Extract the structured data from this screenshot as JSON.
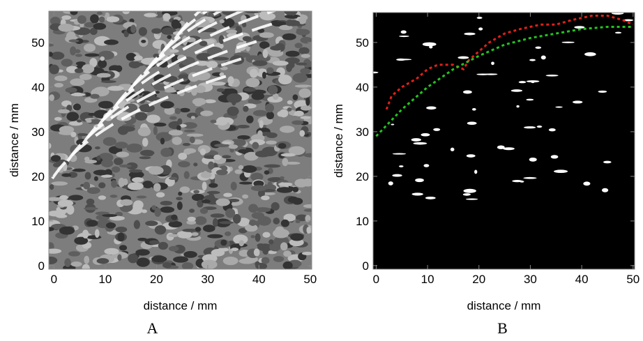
{
  "chart_data": [
    {
      "type": "contour",
      "panel_label": "A",
      "xlabel": "distance / mm",
      "ylabel": "distance / mm",
      "xlim": [
        -1,
        50.3
      ],
      "ylim": [
        -0.8,
        57
      ],
      "xticks": [
        0,
        10,
        20,
        30,
        40,
        50
      ],
      "yticks": [
        0,
        10,
        20,
        30,
        40,
        50
      ]
    },
    {
      "type": "line",
      "panel_label": "B",
      "xlabel": "distance / mm",
      "ylabel": "distance / mm",
      "xlim": [
        -0.6,
        50.3
      ],
      "ylim": [
        -0.8,
        56.7
      ],
      "xticks": [
        0,
        10,
        20,
        30,
        40,
        50
      ],
      "yticks": [
        0,
        10,
        20,
        30,
        40,
        50
      ],
      "series": [
        {
          "color": "#e0201a",
          "x": [
            2,
            3,
            5,
            8,
            10,
            12,
            15,
            17,
            18,
            20,
            22,
            25,
            28,
            32,
            35,
            38,
            42,
            45,
            48,
            50
          ],
          "values": [
            35,
            38,
            40,
            42,
            44,
            45,
            45,
            44,
            46,
            48,
            50,
            52,
            53,
            54,
            54,
            55,
            56,
            56,
            55,
            54
          ]
        },
        {
          "color": "#22c41e",
          "x": [
            0,
            5,
            10,
            15,
            20,
            25,
            30,
            35,
            40,
            45,
            50
          ],
          "values": [
            29,
            35,
            40,
            44,
            47,
            49.5,
            51,
            52,
            53,
            53.5,
            53.5
          ]
        }
      ]
    }
  ]
}
